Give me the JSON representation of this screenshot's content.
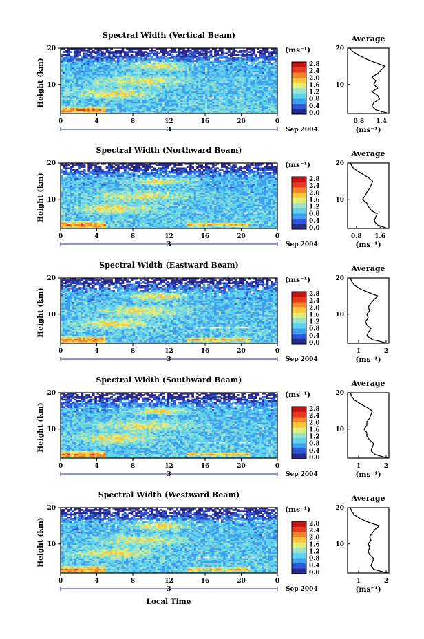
{
  "figure": {
    "xlabel": "Local Time",
    "day_label": "3",
    "date_label": "Sep 2004",
    "colorbar_unit": "(ms⁻¹)",
    "colorbar_ticks": [
      "0.0",
      "0.4",
      "0.8",
      "1.2",
      "1.6",
      "2.0",
      "2.4",
      "2.8"
    ],
    "ylabel": "Height (km)",
    "avg_title": "Average",
    "avg_xlabel": "(ms⁻¹)",
    "colors": {
      "scale": [
        "#2a2a8c",
        "#2f59d8",
        "#3f9ff0",
        "#5fd2ee",
        "#9be3c9",
        "#e2ec7a",
        "#f9c83a",
        "#f7842a",
        "#e8391e",
        "#c41313"
      ],
      "missing": "#ffffff",
      "line": "#000000"
    }
  },
  "chart_data": [
    {
      "type": "heatmap",
      "title": "Spectral Width (Vertical Beam)",
      "x_ticks": [
        "0",
        "4",
        "8",
        "12",
        "16",
        "20",
        "0"
      ],
      "xlim": [
        0,
        24
      ],
      "y_ticks": [
        "20",
        "10"
      ],
      "ylim": [
        2,
        20
      ],
      "avg_profile": {
        "xlim": [
          0.5,
          1.6
        ],
        "x_ticks": [
          "0.8",
          "1.4"
        ],
        "height_km": [
          2,
          3,
          4,
          5,
          6,
          7,
          8,
          9,
          10,
          11,
          12,
          13,
          14,
          15,
          16,
          17,
          18,
          19,
          20
        ],
        "value": [
          1.6,
          1.25,
          1.15,
          1.2,
          1.35,
          1.3,
          1.15,
          1.3,
          1.2,
          1.25,
          1.15,
          1.3,
          1.4,
          1.5,
          1.25,
          1.0,
          0.8,
          0.65,
          0.55
        ]
      }
    },
    {
      "type": "heatmap",
      "title": "Spectral Width (Northward Beam)",
      "x_ticks": [
        "0",
        "4",
        "8",
        "12",
        "16",
        "20",
        "0"
      ],
      "xlim": [
        0,
        24
      ],
      "y_ticks": [
        "20",
        "10"
      ],
      "ylim": [
        2,
        20
      ],
      "avg_profile": {
        "xlim": [
          0.5,
          1.9
        ],
        "x_ticks": [
          "0.8",
          "1.6"
        ],
        "height_km": [
          2,
          3,
          4,
          5,
          6,
          7,
          8,
          9,
          10,
          11,
          12,
          13,
          14,
          15,
          16,
          17,
          18,
          19,
          20
        ],
        "value": [
          1.85,
          1.5,
          1.4,
          1.45,
          1.5,
          1.3,
          1.2,
          1.15,
          1.0,
          1.1,
          1.15,
          1.25,
          1.3,
          1.35,
          1.2,
          1.0,
          0.8,
          0.65,
          0.6
        ]
      }
    },
    {
      "type": "heatmap",
      "title": "Spectral Width (Eastward Beam)",
      "x_ticks": [
        "0",
        "4",
        "8",
        "12",
        "16",
        "20",
        "0"
      ],
      "xlim": [
        0,
        24
      ],
      "y_ticks": [
        "20",
        "10"
      ],
      "ylim": [
        2,
        20
      ],
      "avg_profile": {
        "xlim": [
          0.6,
          2.1
        ],
        "x_ticks": [
          "1",
          "2"
        ],
        "height_km": [
          2,
          3,
          4,
          5,
          6,
          7,
          8,
          9,
          10,
          11,
          12,
          13,
          14,
          15,
          16,
          17,
          18,
          19,
          20
        ],
        "value": [
          2.05,
          1.5,
          1.3,
          1.35,
          1.45,
          1.3,
          1.25,
          1.35,
          1.3,
          1.4,
          1.35,
          1.45,
          1.55,
          1.7,
          1.35,
          1.05,
          0.85,
          0.75,
          0.7
        ]
      }
    },
    {
      "type": "heatmap",
      "title": "Spectral Width (Southward Beam)",
      "x_ticks": [
        "0",
        "4",
        "8",
        "12",
        "16",
        "20",
        "0"
      ],
      "xlim": [
        0,
        24
      ],
      "y_ticks": [
        "20",
        "10"
      ],
      "ylim": [
        2,
        20
      ],
      "avg_profile": {
        "xlim": [
          0.6,
          2.1
        ],
        "x_ticks": [
          "1",
          "2"
        ],
        "height_km": [
          2,
          3,
          4,
          5,
          6,
          7,
          8,
          9,
          10,
          11,
          12,
          13,
          14,
          15,
          16,
          17,
          18,
          19,
          20
        ],
        "value": [
          2.05,
          1.6,
          1.45,
          1.5,
          1.55,
          1.4,
          1.3,
          1.3,
          1.2,
          1.3,
          1.3,
          1.4,
          1.45,
          1.5,
          1.3,
          1.05,
          0.85,
          0.75,
          0.7
        ]
      }
    },
    {
      "type": "heatmap",
      "title": "Spectral Width (Westward Beam)",
      "x_ticks": [
        "0",
        "4",
        "8",
        "12",
        "16",
        "20",
        "0"
      ],
      "xlim": [
        0,
        24
      ],
      "y_ticks": [
        "20",
        "10"
      ],
      "ylim": [
        2,
        20
      ],
      "avg_profile": {
        "xlim": [
          0.6,
          2.1
        ],
        "x_ticks": [
          "1",
          "2"
        ],
        "height_km": [
          2,
          3,
          4,
          5,
          6,
          7,
          8,
          9,
          10,
          11,
          12,
          13,
          14,
          15,
          16,
          17,
          18,
          19,
          20
        ],
        "value": [
          2.05,
          1.55,
          1.45,
          1.5,
          1.55,
          1.4,
          1.35,
          1.4,
          1.35,
          1.45,
          1.4,
          1.5,
          1.6,
          1.75,
          1.35,
          1.05,
          0.85,
          0.75,
          0.7
        ]
      }
    }
  ]
}
